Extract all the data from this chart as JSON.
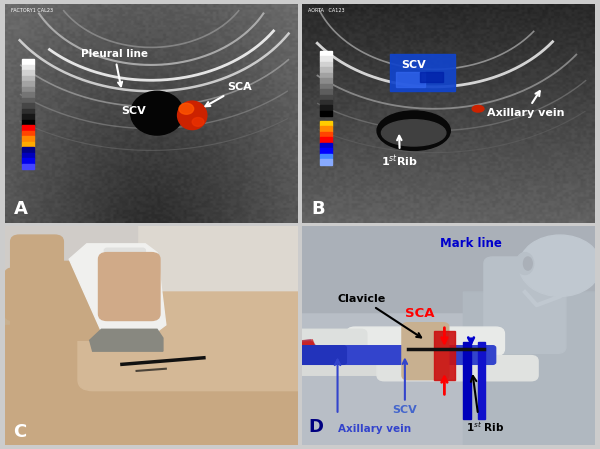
{
  "figure_bg": "#cccccc",
  "panel_A": {
    "bg": "#0a0a0a",
    "label": "A",
    "label_color": "white",
    "label_fontsize": 13,
    "label_fontweight": "bold"
  },
  "panel_B": {
    "bg": "#0a0a0a",
    "label": "B",
    "label_color": "white",
    "label_fontsize": 13,
    "label_fontweight": "bold"
  },
  "panel_C": {
    "label": "C",
    "label_color": "white",
    "label_fontsize": 13,
    "label_fontweight": "bold"
  },
  "panel_D": {
    "bg": "#aab0b8",
    "label": "D",
    "label_color": "#000080",
    "label_fontsize": 13,
    "label_fontweight": "bold"
  }
}
